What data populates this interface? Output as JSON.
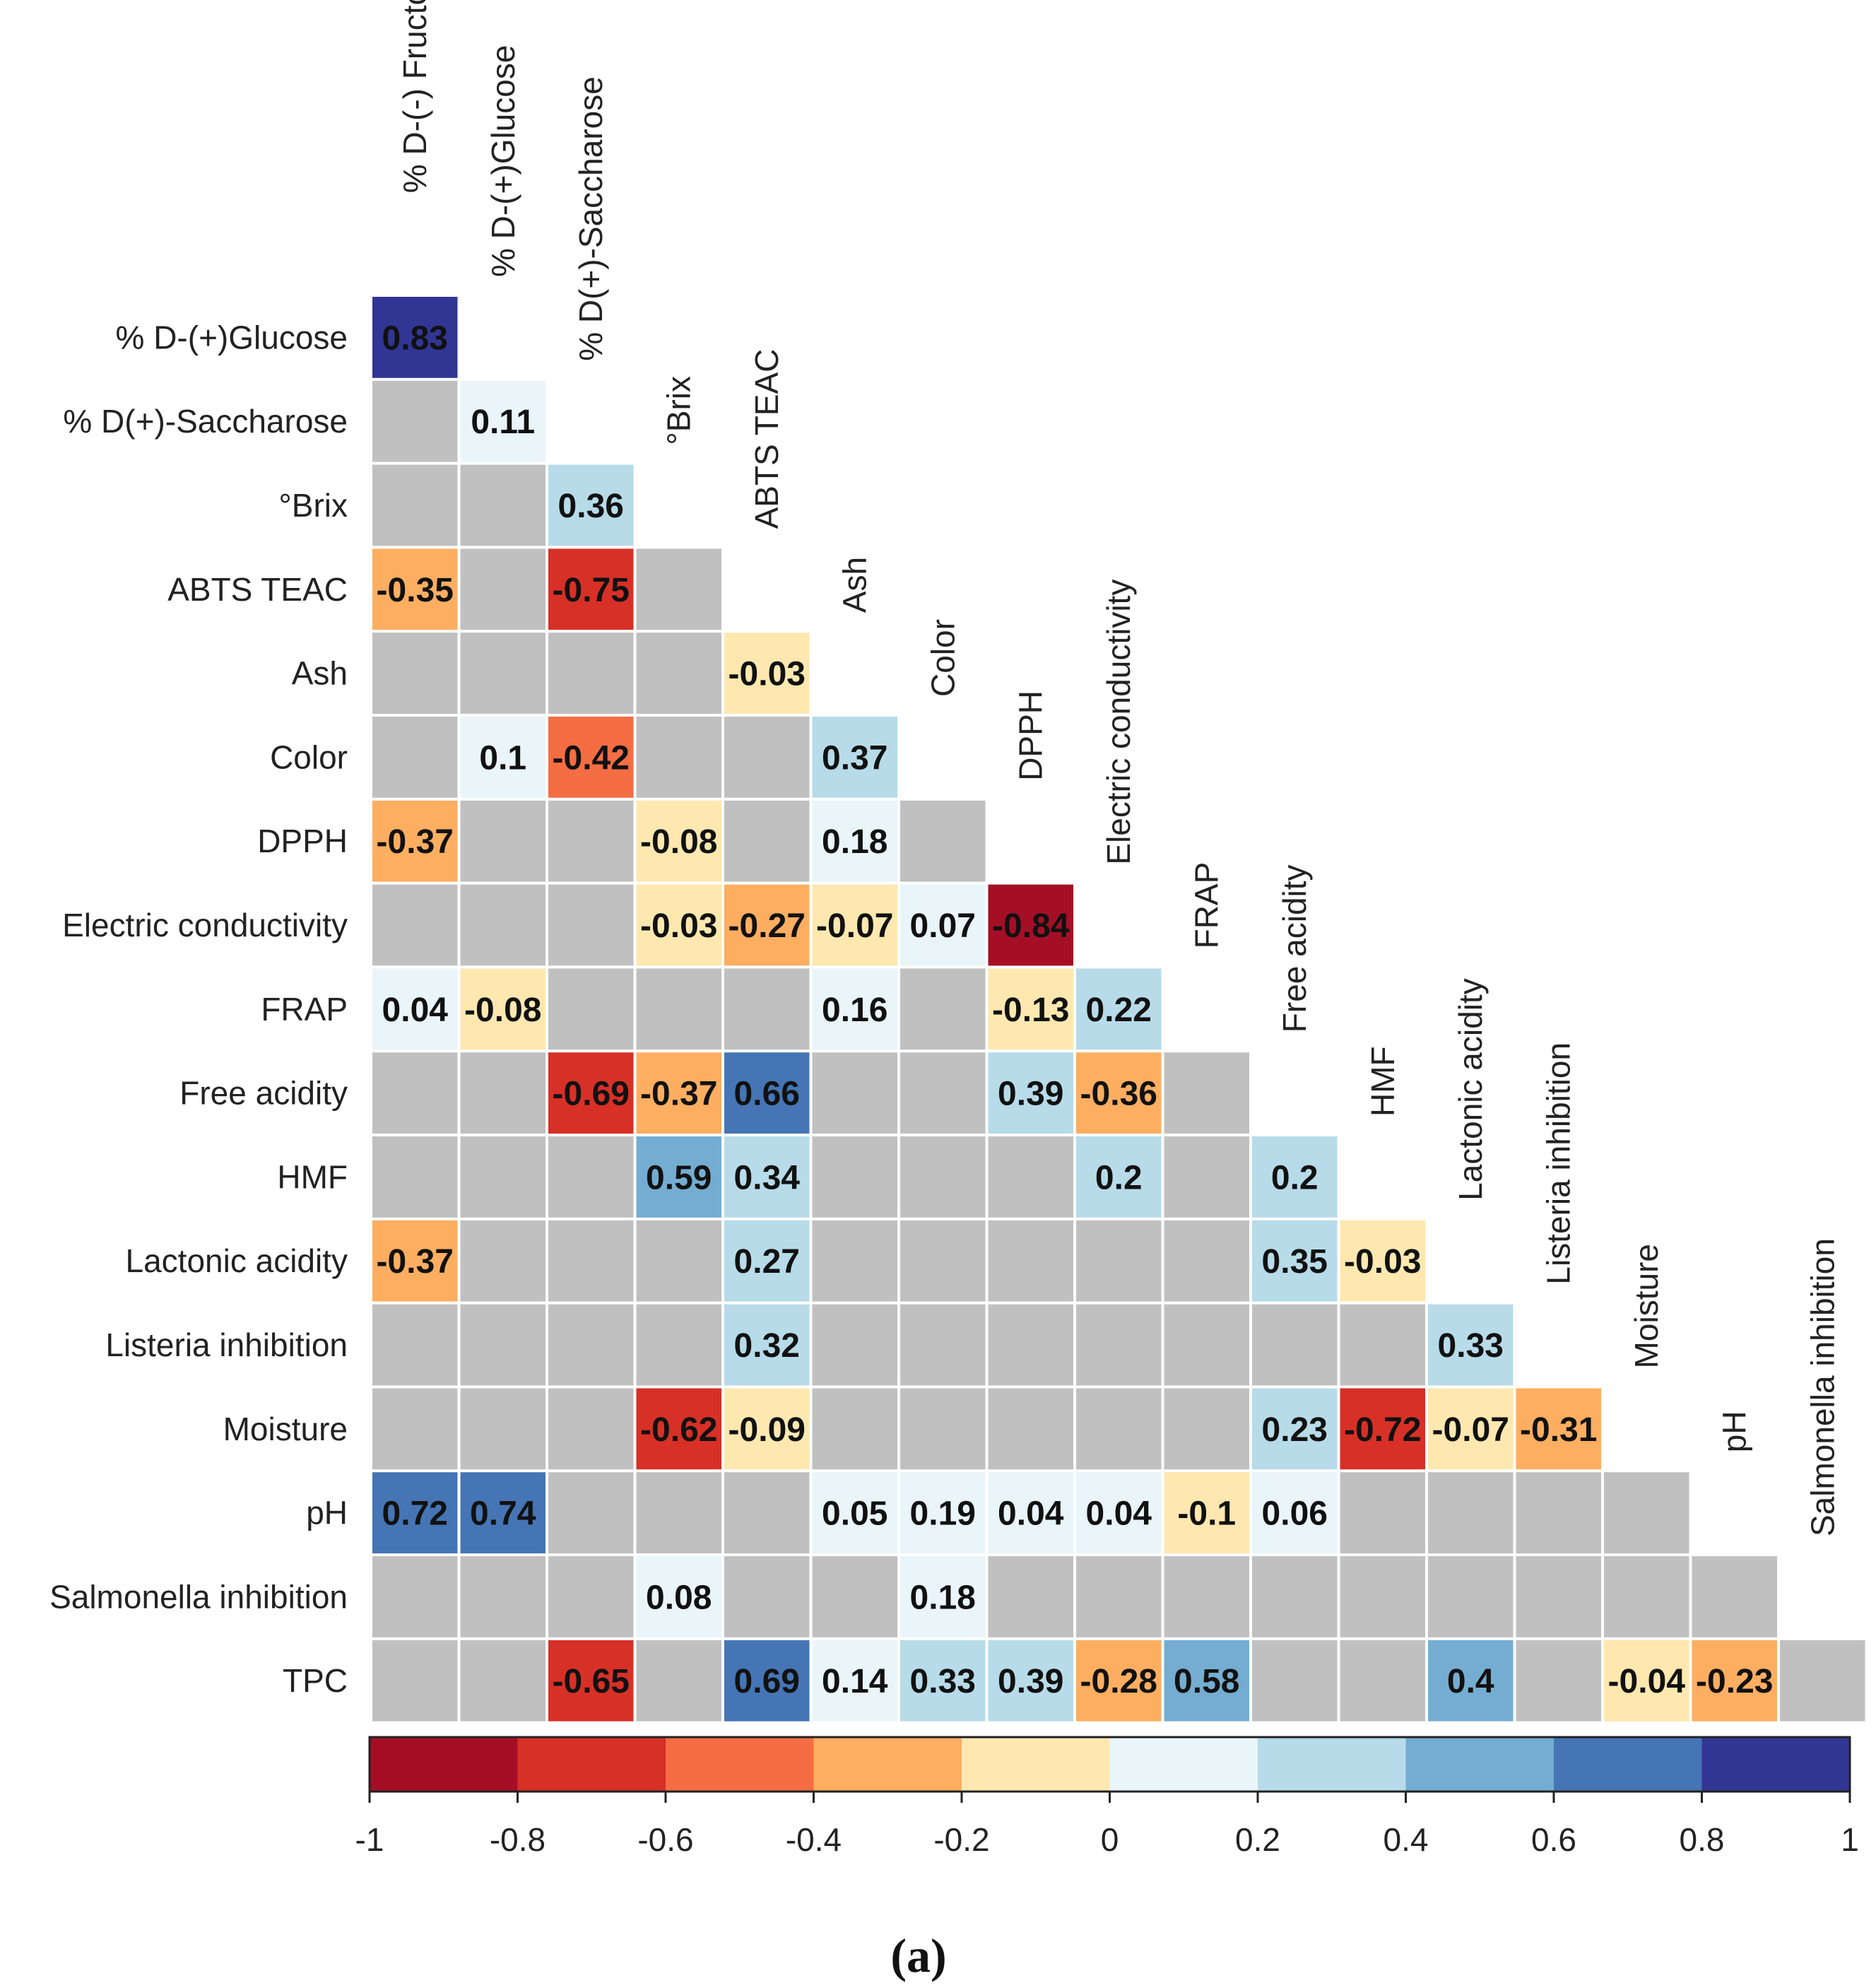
{
  "chart_data": {
    "type": "heatmap",
    "subtype": "lower-triangle correlation matrix",
    "column_labels": [
      "% D-(-) Fructose",
      "% D-(+)Glucose",
      "% D(+)-Saccharose",
      "°Brix",
      "ABTS TEAC",
      "Ash",
      "Color",
      "DPPH",
      "Electric conductivity",
      "FRAP",
      "Free acidity",
      "HMF",
      "Lactonic acidity",
      "Listeria inhibition",
      "Moisture",
      "pH",
      "Salmonella inhibition"
    ],
    "row_labels": [
      "% D-(+)Glucose",
      "% D(+)-Saccharose",
      "°Brix",
      "ABTS TEAC",
      "Ash",
      "Color",
      "DPPH",
      "Electric conductivity",
      "FRAP",
      "Free acidity",
      "HMF",
      "Lactonic acidity",
      "Listeria inhibition",
      "Moisture",
      "pH",
      "Salmonella inhibition",
      "TPC"
    ],
    "values": [
      [
        "0.83"
      ],
      [
        null,
        "0.11"
      ],
      [
        null,
        null,
        "0.36"
      ],
      [
        "-0.35",
        null,
        "-0.75",
        null
      ],
      [
        null,
        null,
        null,
        null,
        "-0.03"
      ],
      [
        null,
        "0.1",
        "-0.42",
        null,
        null,
        "0.37"
      ],
      [
        "-0.37",
        null,
        null,
        "-0.08",
        null,
        "0.18",
        null
      ],
      [
        null,
        null,
        null,
        "-0.03",
        "-0.27",
        "-0.07",
        "0.07",
        "-0.84"
      ],
      [
        "0.04",
        "-0.08",
        null,
        null,
        null,
        "0.16",
        null,
        "-0.13",
        "0.22"
      ],
      [
        null,
        null,
        "-0.69",
        "-0.37",
        "0.66",
        null,
        null,
        "0.39",
        "-0.36",
        null
      ],
      [
        null,
        null,
        null,
        "0.59",
        "0.34",
        null,
        null,
        null,
        "0.2",
        null,
        "0.2"
      ],
      [
        "-0.37",
        null,
        null,
        null,
        "0.27",
        null,
        null,
        null,
        null,
        null,
        "0.35",
        "-0.03"
      ],
      [
        null,
        null,
        null,
        null,
        "0.32",
        null,
        null,
        null,
        null,
        null,
        null,
        null,
        "0.33"
      ],
      [
        null,
        null,
        null,
        "-0.62",
        "-0.09",
        null,
        null,
        null,
        null,
        null,
        "0.23",
        "-0.72",
        "-0.07",
        "-0.31"
      ],
      [
        "0.72",
        "0.74",
        null,
        null,
        null,
        "0.05",
        "0.19",
        "0.04",
        "0.04",
        "-0.1",
        "0.06",
        null,
        null,
        null,
        null
      ],
      [
        null,
        null,
        null,
        "0.08",
        null,
        null,
        "0.18",
        null,
        null,
        null,
        null,
        null,
        null,
        null,
        null,
        null
      ],
      [
        null,
        null,
        "-0.65",
        null,
        "0.69",
        "0.14",
        "0.33",
        "0.39",
        "-0.28",
        "0.58",
        null,
        null,
        "0.4",
        null,
        "-0.04",
        "-0.23",
        null
      ]
    ],
    "color_scale": {
      "range": [
        -1,
        1
      ],
      "ticks": [
        "-1",
        "-0.8",
        "-0.6",
        "-0.4",
        "-0.2",
        "0",
        "0.2",
        "0.4",
        "0.6",
        "0.8",
        "1"
      ],
      "bins": [
        "#a50f26",
        "#d73027",
        "#f46d43",
        "#fdae61",
        "#fee8b0",
        "#eaf5f9",
        "#b7dbe9",
        "#74add1",
        "#4575b4",
        "#313695"
      ],
      "non_significant": "#c0c0c0"
    }
  },
  "caption": "(a)"
}
